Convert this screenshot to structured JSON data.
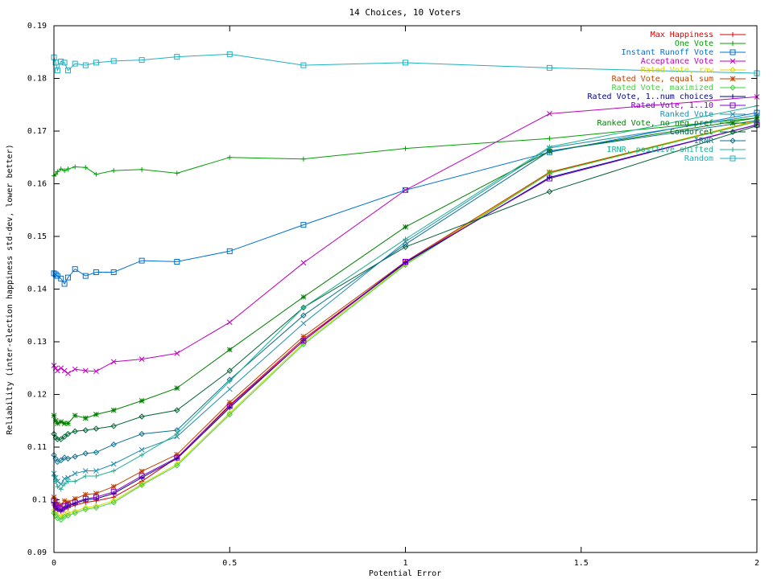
{
  "chart_data": {
    "type": "line",
    "title": "14 Choices, 10 Voters",
    "xlabel": "Potential Error",
    "ylabel": "Reliability (inter-election happiness std-dev, lower better)",
    "xlim": [
      0,
      2
    ],
    "ylim": [
      0.09,
      0.19
    ],
    "xticks": [
      "0",
      "0.5",
      "1",
      "1.5",
      "2"
    ],
    "yticks": [
      "0.09",
      "0.1",
      "0.11",
      "0.12",
      "0.13",
      "0.14",
      "0.15",
      "0.16",
      "0.17",
      "0.18",
      "0.19"
    ],
    "grid": false,
    "legend_position": "top-right",
    "x": [
      0,
      0.005,
      0.01,
      0.02,
      0.03,
      0.04,
      0.06,
      0.09,
      0.12,
      0.17,
      0.25,
      0.35,
      0.5,
      0.71,
      1.0,
      1.41,
      2.0
    ],
    "series": [
      {
        "name": "Max Happiness",
        "color": "#dd0000",
        "values": [
          0.099,
          0.0985,
          0.098,
          0.0978,
          0.0982,
          0.0985,
          0.099,
          0.0995,
          0.0998,
          0.1005,
          0.1035,
          0.108,
          0.118,
          0.1305,
          0.145,
          0.162,
          0.172
        ]
      },
      {
        "name": "One Vote",
        "color": "#00a000",
        "values": [
          0.1615,
          0.1618,
          0.1623,
          0.1628,
          0.1625,
          0.1628,
          0.1632,
          0.1631,
          0.1618,
          0.1625,
          0.1627,
          0.162,
          0.165,
          0.1647,
          0.1667,
          0.1686,
          0.1725
        ]
      },
      {
        "name": "Instant Runoff Vote",
        "color": "#0070d0",
        "values": [
          0.143,
          0.1428,
          0.1425,
          0.142,
          0.141,
          0.1422,
          0.1438,
          0.1425,
          0.1432,
          0.1432,
          0.1454,
          0.1452,
          0.1472,
          0.1522,
          0.1588,
          0.166,
          0.1735
        ]
      },
      {
        "name": "Acceptance Vote",
        "color": "#c000c0",
        "values": [
          0.1255,
          0.125,
          0.1245,
          0.125,
          0.1245,
          0.124,
          0.1248,
          0.1245,
          0.1244,
          0.1262,
          0.1267,
          0.1278,
          0.1337,
          0.145,
          0.1588,
          0.1733,
          0.1765
        ]
      },
      {
        "name": "Rated Vote, raw",
        "color": "#d8d800",
        "values": [
          0.098,
          0.0975,
          0.097,
          0.0968,
          0.0972,
          0.0975,
          0.0978,
          0.0985,
          0.0988,
          0.0998,
          0.103,
          0.1068,
          0.1165,
          0.1298,
          0.1448,
          0.1622,
          0.172
        ]
      },
      {
        "name": "Rated Vote, equal sum",
        "color": "#c04000",
        "values": [
          0.1005,
          0.0998,
          0.0992,
          0.099,
          0.0998,
          0.0995,
          0.1002,
          0.101,
          0.1012,
          0.1025,
          0.1054,
          0.1086,
          0.1185,
          0.131,
          0.1452,
          0.1622,
          0.1718
        ]
      },
      {
        "name": "Rated Vote, maximized",
        "color": "#40d040",
        "values": [
          0.0975,
          0.097,
          0.0965,
          0.0962,
          0.0968,
          0.097,
          0.0975,
          0.0982,
          0.0985,
          0.0995,
          0.1028,
          0.1065,
          0.1162,
          0.1295,
          0.1446,
          0.162,
          0.1718
        ]
      },
      {
        "name": "Rated Vote, 1..num choices",
        "color": "#000090",
        "values": [
          0.0995,
          0.0988,
          0.0982,
          0.098,
          0.0985,
          0.0988,
          0.0993,
          0.1,
          0.1002,
          0.1012,
          0.1042,
          0.1078,
          0.1175,
          0.1302,
          0.145,
          0.1612,
          0.1712
        ]
      },
      {
        "name": "Rated Vote, 1..10",
        "color": "#8000c0",
        "values": [
          0.0998,
          0.099,
          0.0985,
          0.0982,
          0.0988,
          0.099,
          0.0995,
          0.1002,
          0.1005,
          0.1015,
          0.1045,
          0.108,
          0.1178,
          0.1302,
          0.1452,
          0.161,
          0.1712
        ]
      },
      {
        "name": "Ranked Vote",
        "color": "#2090b0",
        "values": [
          0.105,
          0.1042,
          0.1035,
          0.103,
          0.104,
          0.1042,
          0.105,
          0.1055,
          0.1055,
          0.1068,
          0.1095,
          0.112,
          0.121,
          0.1335,
          0.149,
          0.1668,
          0.173
        ]
      },
      {
        "name": "Ranked Vote, no neg pref",
        "color": "#008000",
        "values": [
          0.116,
          0.115,
          0.1145,
          0.1148,
          0.1145,
          0.1145,
          0.116,
          0.1155,
          0.1162,
          0.117,
          0.1188,
          0.1212,
          0.1285,
          0.1385,
          0.1518,
          0.1662,
          0.1725
        ]
      },
      {
        "name": "Condorcet",
        "color": "#006030",
        "values": [
          0.1125,
          0.1118,
          0.1115,
          0.1115,
          0.112,
          0.1125,
          0.113,
          0.1132,
          0.1135,
          0.114,
          0.1158,
          0.117,
          0.1245,
          0.1365,
          0.148,
          0.1585,
          0.171
        ]
      },
      {
        "name": "IRNR",
        "color": "#107090",
        "values": [
          0.1085,
          0.1078,
          0.1072,
          0.1075,
          0.108,
          0.1078,
          0.1082,
          0.1088,
          0.109,
          0.1105,
          0.1125,
          0.1132,
          0.1228,
          0.135,
          0.1485,
          0.1662,
          0.172
        ]
      },
      {
        "name": "IRNR, positive shifted",
        "color": "#20b090",
        "values": [
          0.1045,
          0.1035,
          0.1025,
          0.102,
          0.103,
          0.1035,
          0.1035,
          0.1045,
          0.1045,
          0.1055,
          0.1085,
          0.1125,
          0.1225,
          0.1365,
          0.1495,
          0.167,
          0.1748
        ]
      },
      {
        "name": "Random",
        "color": "#20b0c0",
        "values": [
          0.184,
          0.183,
          0.1815,
          0.1832,
          0.183,
          0.1815,
          0.1828,
          0.1825,
          0.183,
          0.1833,
          0.1835,
          0.1841,
          0.1846,
          0.1825,
          0.183,
          0.182,
          0.181
        ]
      }
    ]
  }
}
